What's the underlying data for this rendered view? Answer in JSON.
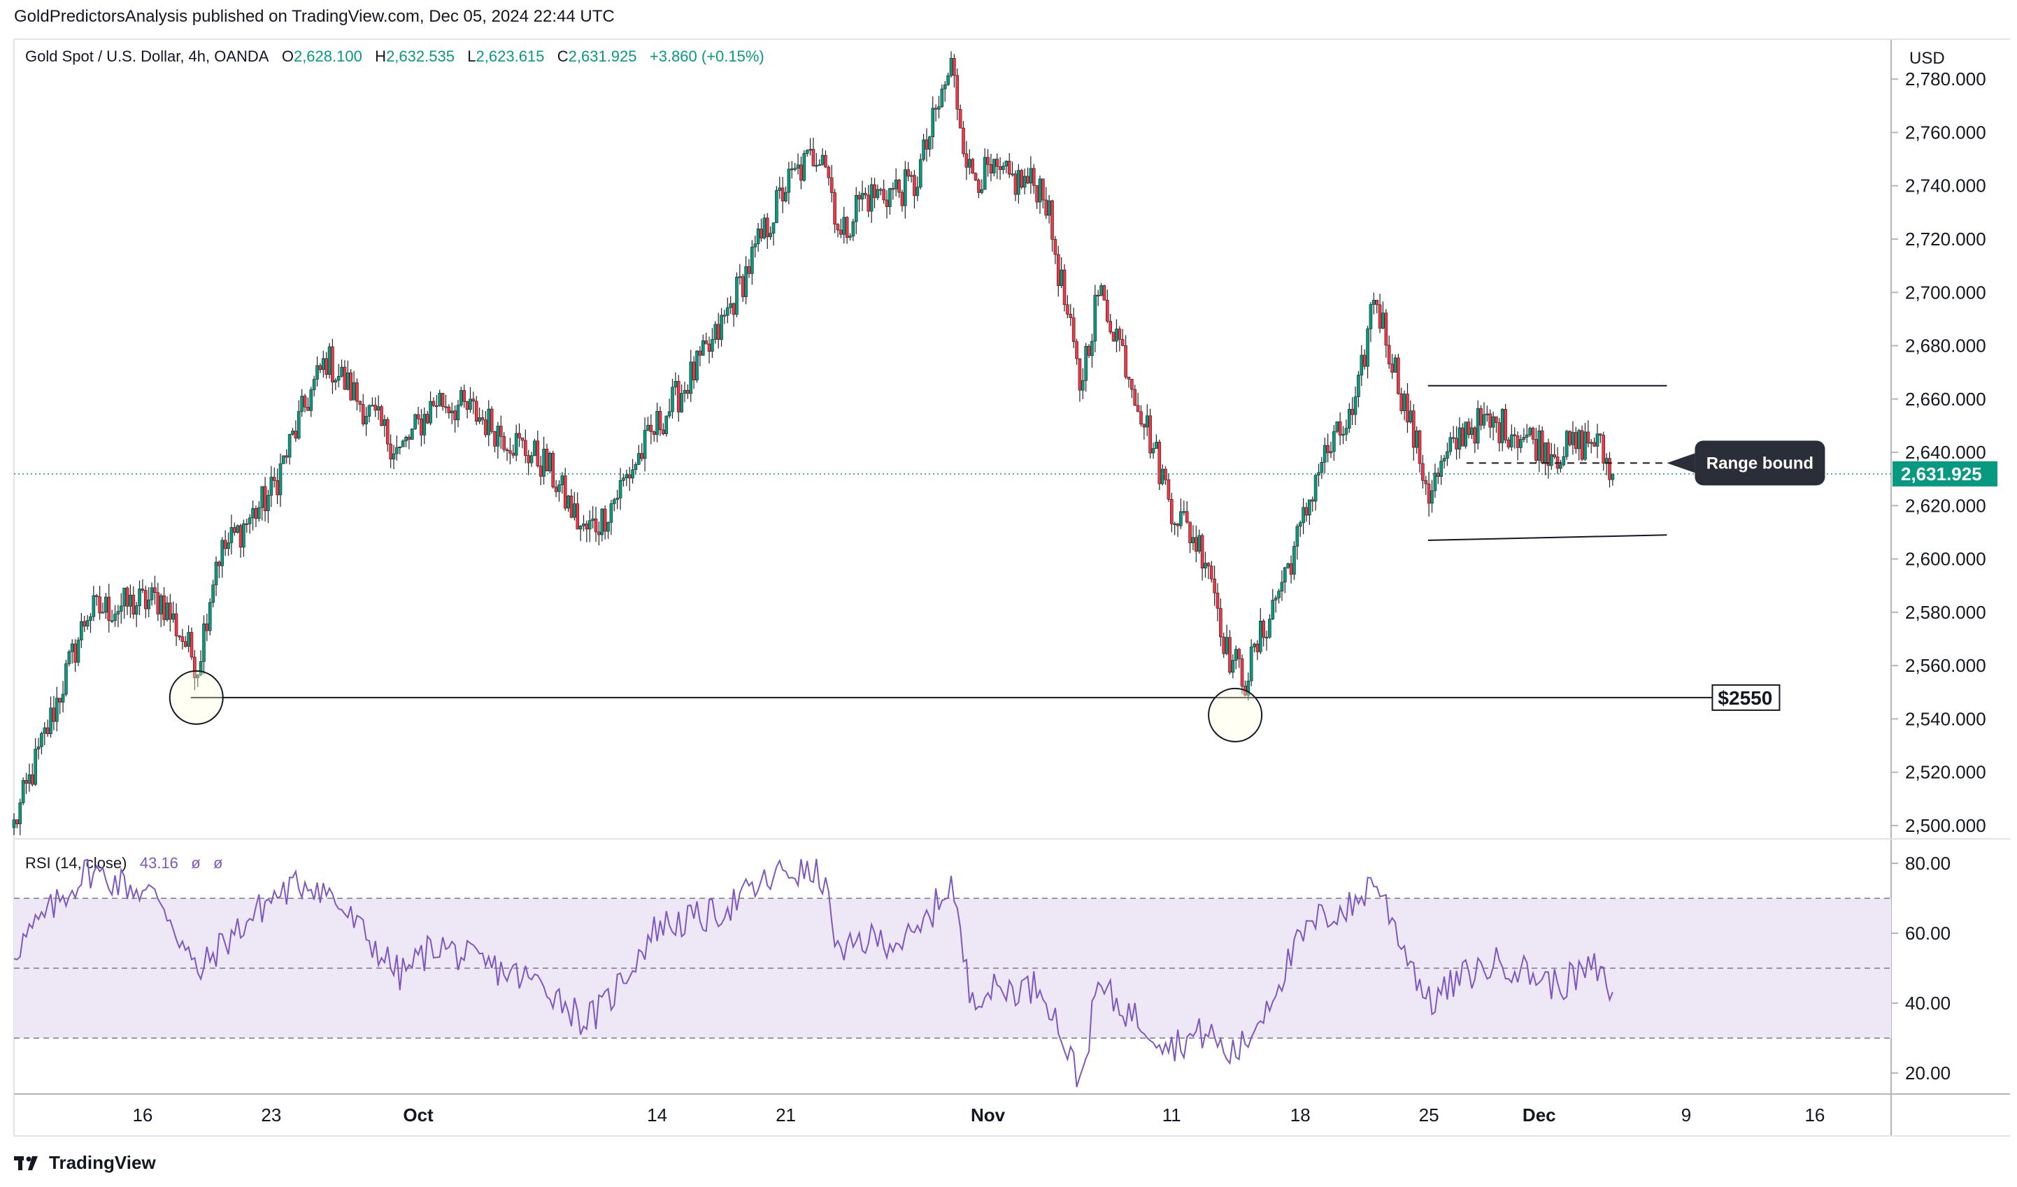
{
  "header": {
    "publisher": "GoldPredictorsAnalysis published on TradingView.com, Dec 05, 2024 22:44 UTC"
  },
  "legend": {
    "symbol": "Gold Spot / U.S. Dollar, 4h, OANDA",
    "open_label": "O",
    "open": "2,628.100",
    "high_label": "H",
    "high": "2,632.535",
    "low_label": "L",
    "low": "2,623.615",
    "close_label": "C",
    "close": "2,631.925",
    "change": "+3.860 (+0.15%)"
  },
  "rsi_legend": {
    "label": "RSI (14, close)",
    "value": "43.16",
    "extra1": "ø",
    "extra2": "ø"
  },
  "currency": "USD",
  "footer": {
    "brand": "TradingView"
  },
  "colors": {
    "up": "#089981",
    "down": "#f23645",
    "rsi": "#7e57c2",
    "rsi_band": "#ede7f6"
  },
  "chart_data": [
    {
      "type": "candlestick",
      "timeframe": "4h",
      "series_path": [
        [
          "Sep 09",
          2500
        ],
        [
          "Sep 13",
          2580
        ],
        [
          "Sep 17",
          2585
        ],
        [
          "Sep 19",
          2560
        ],
        [
          "Sep 20",
          2600
        ],
        [
          "Sep 23",
          2625
        ],
        [
          "Sep 25",
          2660
        ],
        [
          "Sep 26",
          2675
        ],
        [
          "Sep 30",
          2640
        ],
        [
          "Oct 02",
          2660
        ],
        [
          "Oct 04",
          2655
        ],
        [
          "Oct 08",
          2635
        ],
        [
          "Oct 10",
          2610
        ],
        [
          "Oct 11",
          2615
        ],
        [
          "Oct 14",
          2650
        ],
        [
          "Oct 17",
          2680
        ],
        [
          "Oct 21",
          2740
        ],
        [
          "Oct 23",
          2755
        ],
        [
          "Oct 24",
          2720
        ],
        [
          "Oct 25",
          2735
        ],
        [
          "Oct 28",
          2740
        ],
        [
          "Oct 30",
          2785
        ],
        [
          "Oct 31",
          2745
        ],
        [
          "Nov 04",
          2740
        ],
        [
          "Nov 06",
          2665
        ],
        [
          "Nov 07",
          2700
        ],
        [
          "Nov 08",
          2685
        ],
        [
          "Nov 11",
          2620
        ],
        [
          "Nov 13",
          2600
        ],
        [
          "Nov 14",
          2565
        ],
        [
          "Nov 15",
          2555
        ],
        [
          "Nov 18",
          2610
        ],
        [
          "Nov 19",
          2635
        ],
        [
          "Nov 21",
          2655
        ],
        [
          "Nov 22",
          2700
        ],
        [
          "Nov 25",
          2625
        ],
        [
          "Nov 27",
          2650
        ],
        [
          "Nov 29",
          2650
        ],
        [
          "Dec 02",
          2640
        ],
        [
          "Dec 04",
          2645
        ],
        [
          "Dec 05",
          2632
        ]
      ],
      "y_ticks": [
        "2,500.000",
        "2,520.000",
        "2,540.000",
        "2,560.000",
        "2,580.000",
        "2,600.000",
        "2,620.000",
        "2,640.000",
        "2,660.000",
        "2,680.000",
        "2,700.000",
        "2,720.000",
        "2,740.000",
        "2,760.000",
        "2,780.000"
      ],
      "ylim": [
        2495,
        2795
      ],
      "last_price_label": "2,631.925",
      "last_price": 2631.925,
      "support_label": "$2550",
      "support_level": 2548,
      "annotation": "Range bound",
      "range_upper": [
        2665,
        2665
      ],
      "range_lower": [
        2607,
        2609
      ],
      "range_mid": 2636
    },
    {
      "type": "line",
      "name": "RSI (14, close)",
      "series_path": [
        [
          "Sep 09",
          55
        ],
        [
          "Sep 13",
          78
        ],
        [
          "Sep 17",
          70
        ],
        [
          "Sep 19",
          48
        ],
        [
          "Sep 20",
          55
        ],
        [
          "Sep 23",
          70
        ],
        [
          "Sep 25",
          75
        ],
        [
          "Sep 26",
          72
        ],
        [
          "Sep 30",
          48
        ],
        [
          "Oct 02",
          57
        ],
        [
          "Oct 04",
          52
        ],
        [
          "Oct 08",
          45
        ],
        [
          "Oct 10",
          35
        ],
        [
          "Oct 11",
          38
        ],
        [
          "Oct 14",
          62
        ],
        [
          "Oct 17",
          65
        ],
        [
          "Oct 21",
          78
        ],
        [
          "Oct 23",
          76
        ],
        [
          "Oct 24",
          52
        ],
        [
          "Oct 25",
          58
        ],
        [
          "Oct 28",
          58
        ],
        [
          "Oct 30",
          75
        ],
        [
          "Oct 31",
          43
        ],
        [
          "Nov 04",
          45
        ],
        [
          "Nov 06",
          17
        ],
        [
          "Nov 07",
          45
        ],
        [
          "Nov 08",
          40
        ],
        [
          "Nov 11",
          28
        ],
        [
          "Nov 13",
          32
        ],
        [
          "Nov 14",
          25
        ],
        [
          "Nov 15",
          28
        ],
        [
          "Nov 18",
          58
        ],
        [
          "Nov 19",
          64
        ],
        [
          "Nov 21",
          68
        ],
        [
          "Nov 22",
          76
        ],
        [
          "Nov 25",
          40
        ],
        [
          "Nov 27",
          48
        ],
        [
          "Nov 29",
          52
        ],
        [
          "Dec 02",
          45
        ],
        [
          "Dec 04",
          50
        ],
        [
          "Dec 05",
          43
        ]
      ],
      "y_ticks": [
        "20.00",
        "40.00",
        "60.00",
        "80.00"
      ],
      "ylim": [
        14,
        86
      ],
      "bands": [
        30,
        50,
        70
      ]
    }
  ],
  "x_ticks": [
    "16",
    "23",
    "Oct",
    "14",
    "21",
    "Nov",
    "11",
    "18",
    "25",
    "Dec",
    "9",
    "16"
  ]
}
